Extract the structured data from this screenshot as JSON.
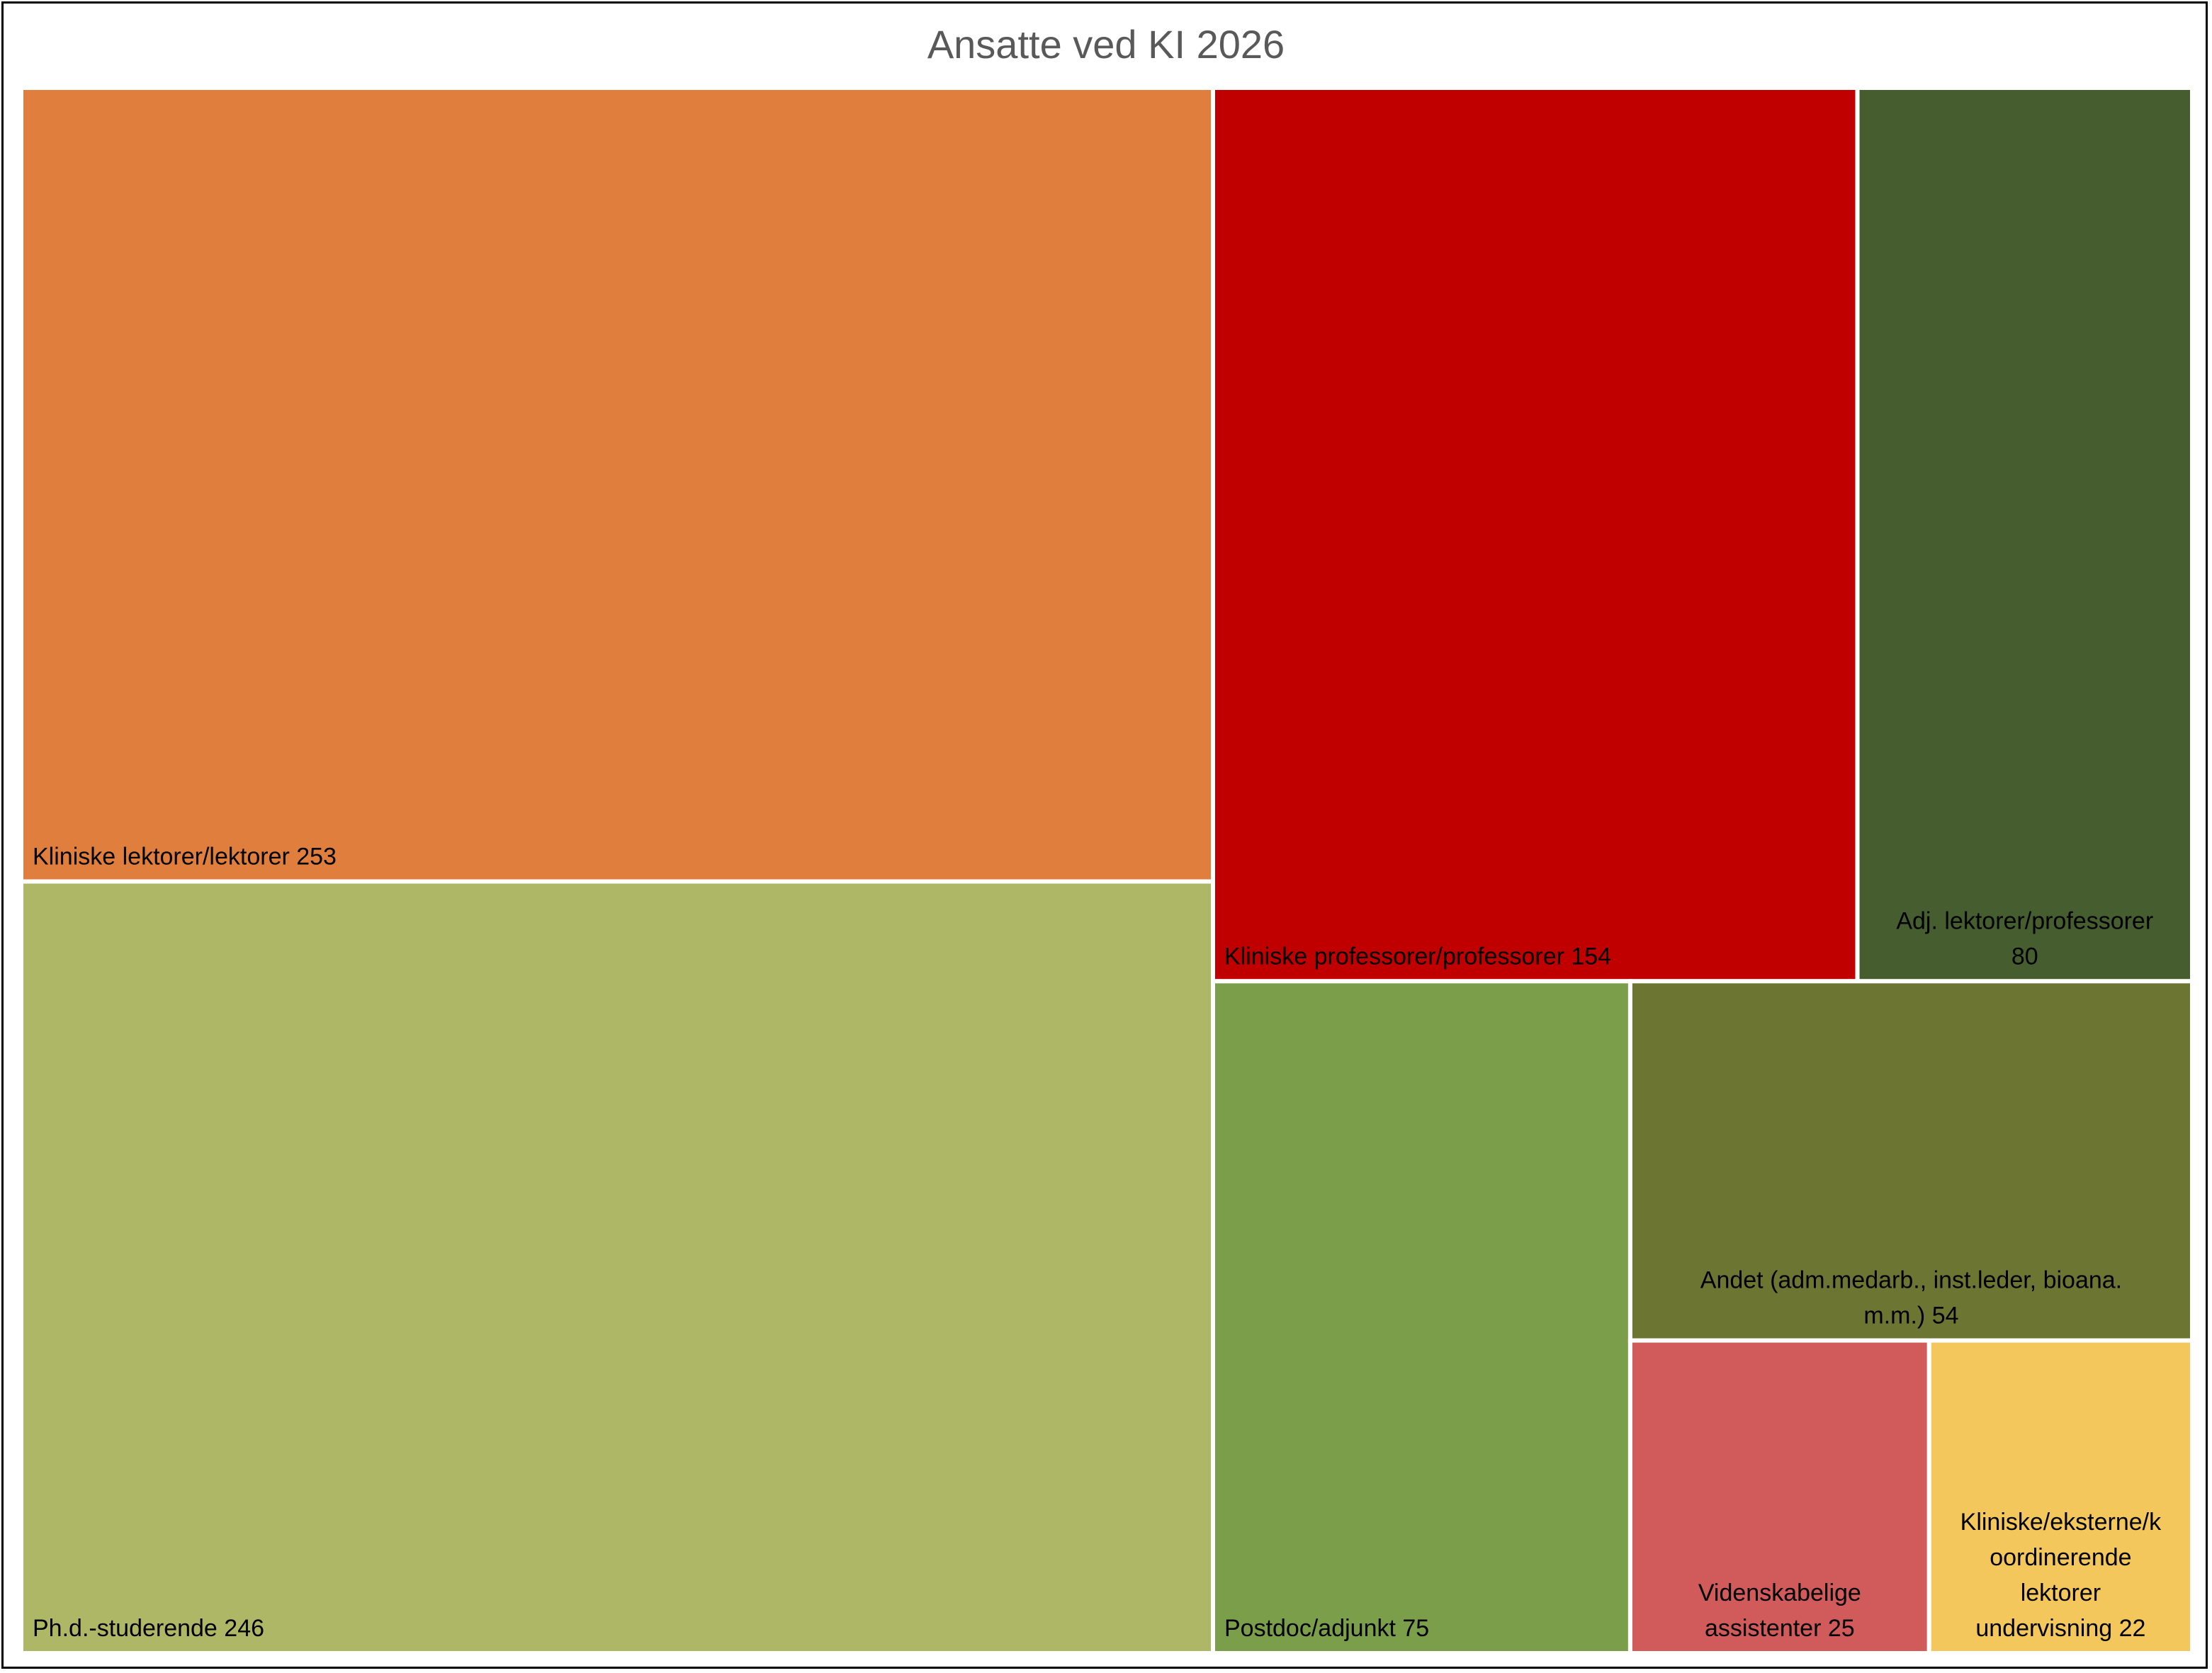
{
  "chart_data": {
    "type": "treemap",
    "title": "Ansatte ved KI 2026",
    "items": [
      {
        "label": "Kliniske lektorer/lektorer",
        "value": 253,
        "color": "#E07E3E"
      },
      {
        "label": "Ph.d.-studerende",
        "value": 246,
        "color": "#AEB765"
      },
      {
        "label": "Kliniske professorer/professorer",
        "value": 154,
        "color": "#C00000"
      },
      {
        "label": "Adj. lektorer/professorer",
        "value": 80,
        "color": "#465E2F"
      },
      {
        "label": "Postdoc/adjunkt",
        "value": 75,
        "color": "#7A9E4A"
      },
      {
        "label": "Andet (adm.medarb., inst.leder, bioana. m.m.)",
        "value": 54,
        "color": "#6D7533"
      },
      {
        "label": "Videnskabelige assistenter",
        "value": 25,
        "color": "#D15A5A"
      },
      {
        "label": "Kliniske/eksterne/koordinerende lektorer undervisning",
        "value": 22,
        "color": "#F3C75B"
      }
    ]
  }
}
